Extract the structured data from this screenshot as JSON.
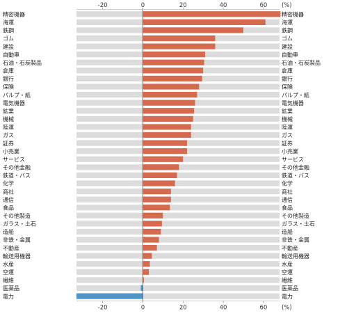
{
  "chart_data": {
    "type": "bar",
    "orientation": "horizontal",
    "unit_label": "(%)",
    "xlim": [
      -33,
      68
    ],
    "x_ticks": [
      -20,
      0,
      20,
      40,
      60
    ],
    "grid": false,
    "legend": "none",
    "colors": {
      "positive": "#d66a4f",
      "negative": "#4f95c8",
      "band": "#dcdcdc",
      "axis": "#555555"
    },
    "categories": [
      "精密機器",
      "海運",
      "鉄鋼",
      "ゴム",
      "建設",
      "自動車",
      "石油・石炭製品",
      "倉庫",
      "銀行",
      "保険",
      "パルプ・紙",
      "電気機器",
      "鉱業",
      "機械",
      "陸運",
      "ガス",
      "証券",
      "小売業",
      "サービス",
      "その他金融",
      "鉄道・バス",
      "化学",
      "商社",
      "通信",
      "食品",
      "その他製造",
      "ガラス・土石",
      "造船",
      "非鉄・金属",
      "不動産",
      "輸送用機器",
      "水産",
      "空運",
      "繊維",
      "医薬品",
      "電力"
    ],
    "values": [
      68.5,
      61,
      50,
      36,
      36,
      31,
      30.5,
      30,
      29.5,
      28,
      27,
      26,
      25.5,
      25,
      24,
      24,
      22,
      22,
      20,
      18,
      17,
      16,
      14,
      14,
      13.5,
      10,
      9.5,
      9,
      8,
      7,
      4.5,
      3.5,
      3,
      0.5,
      -1,
      -33
    ]
  }
}
